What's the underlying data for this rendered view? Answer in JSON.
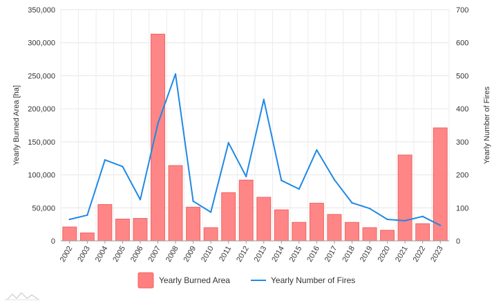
{
  "chart_data": {
    "type": "bar",
    "categories": [
      "2002",
      "2003",
      "2004",
      "2005",
      "2006",
      "2007",
      "2008",
      "2009",
      "2010",
      "2011",
      "2012",
      "2013",
      "2014",
      "2015",
      "2016",
      "2017",
      "2018",
      "2019",
      "2020",
      "2021",
      "2022",
      "2023"
    ],
    "series": [
      {
        "name": "Yearly Burned Area",
        "type": "bar",
        "axis": "left",
        "color": "#ff7f7f",
        "values": [
          21000,
          12000,
          55000,
          33000,
          34000,
          313000,
          114000,
          51000,
          20000,
          73000,
          92000,
          66000,
          47000,
          28000,
          57000,
          40000,
          28000,
          20000,
          16000,
          130000,
          26000,
          171000
        ]
      },
      {
        "name": "Yearly Number of Fires",
        "type": "line",
        "axis": "right",
        "color": "#1e88e5",
        "values": [
          65,
          78,
          245,
          225,
          125,
          355,
          505,
          120,
          87,
          297,
          195,
          428,
          183,
          157,
          275,
          185,
          115,
          98,
          65,
          61,
          74,
          47
        ]
      }
    ],
    "ylabel_left": "Yearly Burned Area [ha]",
    "ylabel_right": "Yearly Number of Fires",
    "ylim_left": [
      0,
      350000
    ],
    "ylim_right": [
      0,
      700
    ],
    "yticks_left": [
      "0",
      "50,000",
      "100,000",
      "150,000",
      "200,000",
      "250,000",
      "300,000",
      "350,000"
    ],
    "yticks_right": [
      "0",
      "100",
      "200",
      "300",
      "400",
      "500",
      "600",
      "700"
    ],
    "grid": true,
    "legend_position": "bottom"
  }
}
